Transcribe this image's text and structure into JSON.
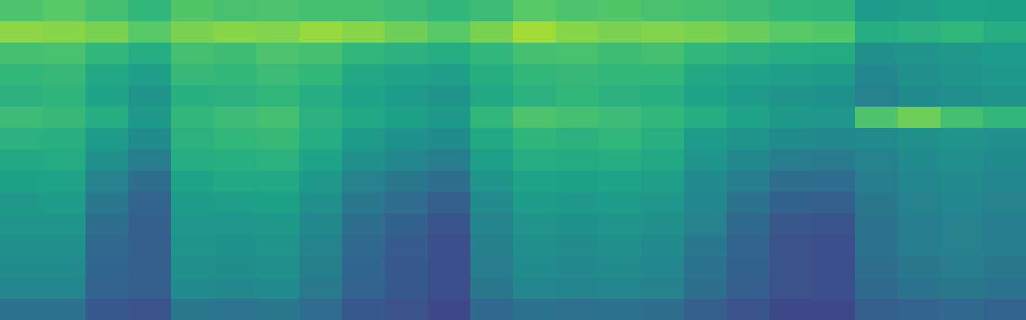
{
  "chart_data": {
    "type": "heatmap",
    "color": "viridis",
    "tick_labels": false,
    "zlim": [
      0,
      1
    ],
    "cells": [
      [
        0.72,
        0.74,
        0.7,
        0.66,
        0.73,
        0.71,
        0.72,
        0.7,
        0.7,
        0.68,
        0.66,
        0.68,
        0.74,
        0.72,
        0.73,
        0.71,
        0.7,
        0.68,
        0.66,
        0.65,
        0.55,
        0.56,
        0.58,
        0.57
      ],
      [
        0.83,
        0.82,
        0.8,
        0.74,
        0.8,
        0.82,
        0.81,
        0.84,
        0.82,
        0.78,
        0.74,
        0.8,
        0.86,
        0.82,
        0.8,
        0.81,
        0.8,
        0.77,
        0.74,
        0.73,
        0.62,
        0.64,
        0.66,
        0.62
      ],
      [
        0.7,
        0.71,
        0.66,
        0.62,
        0.7,
        0.69,
        0.72,
        0.7,
        0.66,
        0.64,
        0.62,
        0.66,
        0.7,
        0.71,
        0.69,
        0.7,
        0.66,
        0.64,
        0.62,
        0.61,
        0.5,
        0.52,
        0.54,
        0.55
      ],
      [
        0.66,
        0.67,
        0.6,
        0.56,
        0.67,
        0.66,
        0.68,
        0.66,
        0.6,
        0.58,
        0.56,
        0.62,
        0.66,
        0.67,
        0.66,
        0.66,
        0.6,
        0.58,
        0.56,
        0.55,
        0.46,
        0.5,
        0.52,
        0.54
      ],
      [
        0.64,
        0.65,
        0.58,
        0.52,
        0.63,
        0.64,
        0.66,
        0.62,
        0.58,
        0.55,
        0.52,
        0.6,
        0.64,
        0.66,
        0.64,
        0.63,
        0.58,
        0.55,
        0.52,
        0.51,
        0.44,
        0.48,
        0.5,
        0.52
      ],
      [
        0.68,
        0.67,
        0.62,
        0.54,
        0.66,
        0.68,
        0.7,
        0.64,
        0.6,
        0.57,
        0.54,
        0.66,
        0.72,
        0.7,
        0.68,
        0.66,
        0.62,
        0.58,
        0.54,
        0.53,
        0.72,
        0.78,
        0.7,
        0.66
      ],
      [
        0.64,
        0.63,
        0.55,
        0.48,
        0.64,
        0.66,
        0.67,
        0.62,
        0.55,
        0.51,
        0.48,
        0.6,
        0.65,
        0.64,
        0.66,
        0.63,
        0.55,
        0.52,
        0.48,
        0.47,
        0.48,
        0.5,
        0.52,
        0.5
      ],
      [
        0.6,
        0.61,
        0.5,
        0.42,
        0.62,
        0.63,
        0.64,
        0.58,
        0.5,
        0.46,
        0.42,
        0.56,
        0.62,
        0.61,
        0.62,
        0.6,
        0.52,
        0.47,
        0.42,
        0.41,
        0.44,
        0.48,
        0.5,
        0.48
      ],
      [
        0.57,
        0.58,
        0.44,
        0.36,
        0.58,
        0.6,
        0.6,
        0.54,
        0.44,
        0.4,
        0.36,
        0.52,
        0.58,
        0.57,
        0.58,
        0.56,
        0.48,
        0.42,
        0.36,
        0.35,
        0.42,
        0.46,
        0.48,
        0.46
      ],
      [
        0.54,
        0.55,
        0.4,
        0.32,
        0.55,
        0.56,
        0.57,
        0.5,
        0.4,
        0.35,
        0.3,
        0.48,
        0.55,
        0.54,
        0.55,
        0.53,
        0.46,
        0.38,
        0.31,
        0.3,
        0.4,
        0.44,
        0.46,
        0.44
      ],
      [
        0.52,
        0.52,
        0.36,
        0.3,
        0.53,
        0.53,
        0.54,
        0.47,
        0.36,
        0.31,
        0.26,
        0.45,
        0.52,
        0.51,
        0.52,
        0.5,
        0.44,
        0.34,
        0.27,
        0.26,
        0.38,
        0.42,
        0.44,
        0.42
      ],
      [
        0.5,
        0.5,
        0.34,
        0.3,
        0.52,
        0.51,
        0.52,
        0.45,
        0.34,
        0.29,
        0.24,
        0.43,
        0.5,
        0.49,
        0.5,
        0.48,
        0.4,
        0.32,
        0.25,
        0.24,
        0.38,
        0.42,
        0.44,
        0.42
      ],
      [
        0.48,
        0.48,
        0.33,
        0.3,
        0.5,
        0.49,
        0.5,
        0.43,
        0.33,
        0.28,
        0.24,
        0.42,
        0.48,
        0.47,
        0.48,
        0.46,
        0.38,
        0.31,
        0.25,
        0.24,
        0.36,
        0.4,
        0.42,
        0.4
      ],
      [
        0.46,
        0.46,
        0.32,
        0.3,
        0.48,
        0.47,
        0.48,
        0.41,
        0.32,
        0.28,
        0.24,
        0.4,
        0.46,
        0.45,
        0.46,
        0.44,
        0.36,
        0.3,
        0.25,
        0.24,
        0.34,
        0.38,
        0.4,
        0.38
      ],
      [
        0.38,
        0.38,
        0.28,
        0.26,
        0.4,
        0.39,
        0.4,
        0.35,
        0.28,
        0.25,
        0.22,
        0.34,
        0.38,
        0.37,
        0.38,
        0.36,
        0.3,
        0.26,
        0.22,
        0.22,
        0.3,
        0.32,
        0.34,
        0.32
      ]
    ]
  }
}
